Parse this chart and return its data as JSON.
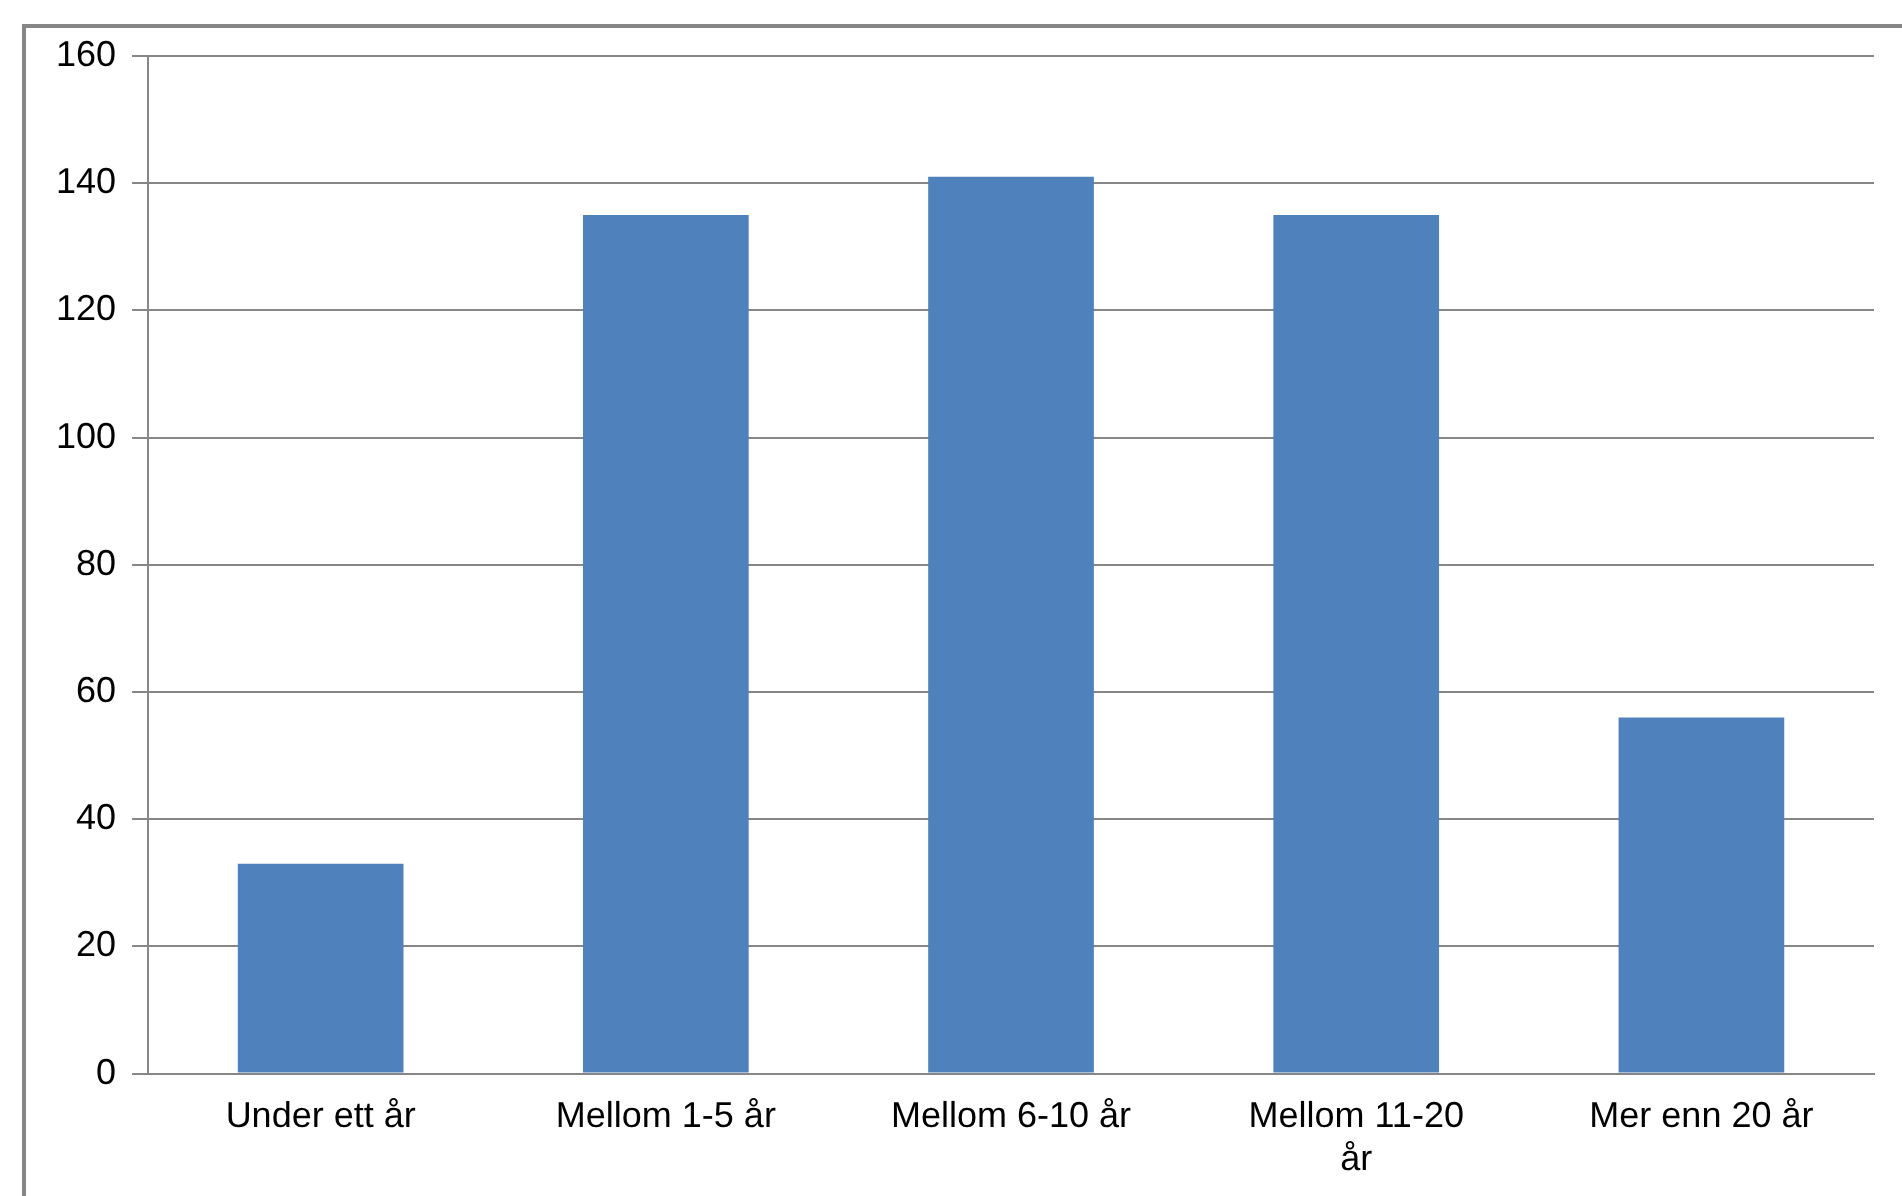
{
  "chart_data": {
    "type": "bar",
    "categories": [
      "Under ett år",
      "Mellom 1-5 år",
      "Mellom 6-10 år",
      "Mellom 11-20 år",
      "Mer enn 20 år"
    ],
    "values": [
      33,
      135,
      141,
      135,
      56
    ],
    "color": "#4f81bd",
    "ylim": [
      0,
      160
    ],
    "yticks": [
      0,
      20,
      40,
      60,
      80,
      100,
      120,
      140,
      160
    ],
    "grid": "y",
    "legend": false
  }
}
